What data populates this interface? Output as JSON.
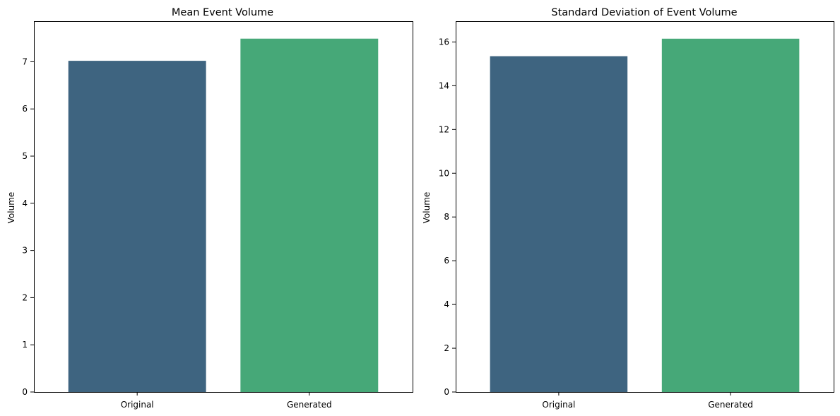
{
  "chart_data": [
    {
      "type": "bar",
      "title": "Mean Event Volume",
      "xlabel": "",
      "ylabel": "Volume",
      "categories": [
        "Original",
        "Generated"
      ],
      "values": [
        7.02,
        7.49
      ],
      "ylim": [
        0,
        7.86
      ],
      "yticks": [
        0,
        1,
        2,
        3,
        4,
        5,
        6,
        7
      ],
      "bar_colors": [
        "#3e6480",
        "#46a878"
      ],
      "grid": false,
      "legend": "none"
    },
    {
      "type": "bar",
      "title": "Standard Deviation of Event Volume",
      "xlabel": "",
      "ylabel": "Volume",
      "categories": [
        "Original",
        "Generated"
      ],
      "values": [
        15.35,
        16.15
      ],
      "ylim": [
        0,
        16.95
      ],
      "yticks": [
        0,
        2,
        4,
        6,
        8,
        10,
        12,
        14,
        16
      ],
      "bar_colors": [
        "#3e6480",
        "#46a878"
      ],
      "grid": false,
      "legend": "none"
    }
  ]
}
